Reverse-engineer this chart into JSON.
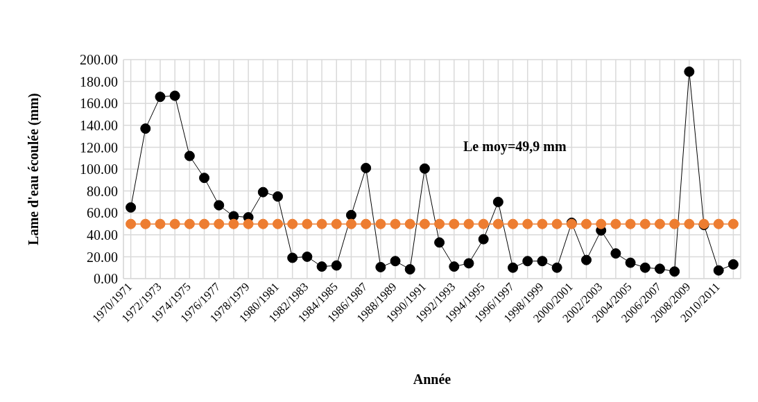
{
  "chart_data": {
    "type": "line",
    "xlabel": "Année",
    "ylabel": "Lame d'eau écoulée (mm)",
    "categories": [
      "1970/1971",
      null,
      "1972/1973",
      null,
      "1974/1975",
      null,
      "1976/1977",
      null,
      "1978/1979",
      null,
      "1980/1981",
      null,
      "1982/1983",
      null,
      "1984/1985",
      null,
      "1986/1987",
      null,
      "1988/1989",
      null,
      "1990/1991",
      null,
      "1992/1993",
      null,
      "1994/1995",
      null,
      "1996/1997",
      null,
      "1998/1999",
      null,
      "2000/2001",
      null,
      "2002/2003",
      null,
      "2004/2005",
      null,
      "2006/2007",
      null,
      "2008/2009",
      null,
      "2010/2011",
      null
    ],
    "series": [
      {
        "color": "#000000",
        "values": [
          65,
          137,
          166,
          167,
          112,
          92,
          67,
          57,
          56,
          79,
          75,
          19,
          20,
          11,
          12,
          58,
          101,
          10.5,
          16,
          8.5,
          100.5,
          33,
          11,
          14,
          36,
          70,
          10,
          16,
          16,
          10,
          51,
          17,
          44,
          23,
          14.5,
          10,
          9,
          6.5,
          189,
          49,
          7.5,
          13
        ]
      },
      {
        "color": "#ed7d31",
        "values": [
          49.9,
          49.9,
          49.9,
          49.9,
          49.9,
          49.9,
          49.9,
          49.9,
          49.9,
          49.9,
          49.9,
          49.9,
          49.9,
          49.9,
          49.9,
          49.9,
          49.9,
          49.9,
          49.9,
          49.9,
          49.9,
          49.9,
          49.9,
          49.9,
          49.9,
          49.9,
          49.9,
          49.9,
          49.9,
          49.9,
          49.9,
          49.9,
          49.9,
          49.9,
          49.9,
          49.9,
          49.9,
          49.9,
          49.9,
          49.9,
          49.9,
          49.9
        ]
      }
    ],
    "ylim": [
      0,
      200
    ],
    "yticks": [
      {
        "value": 0,
        "label": "0.00"
      },
      {
        "value": 20,
        "label": "20.00"
      },
      {
        "value": 40,
        "label": "40.00"
      },
      {
        "value": 60,
        "label": "60.00"
      },
      {
        "value": 80,
        "label": "80.00"
      },
      {
        "value": 100,
        "label": "100.00"
      },
      {
        "value": 120,
        "label": "120.00"
      },
      {
        "value": 140,
        "label": "140.00"
      },
      {
        "value": 160,
        "label": "160.00"
      },
      {
        "value": 180,
        "label": "180.00"
      },
      {
        "value": 200,
        "label": "200.00"
      }
    ],
    "grid": true,
    "marker": "circle",
    "line_style": "solid",
    "annotations": [
      "Le moy=49,9 mm"
    ]
  }
}
